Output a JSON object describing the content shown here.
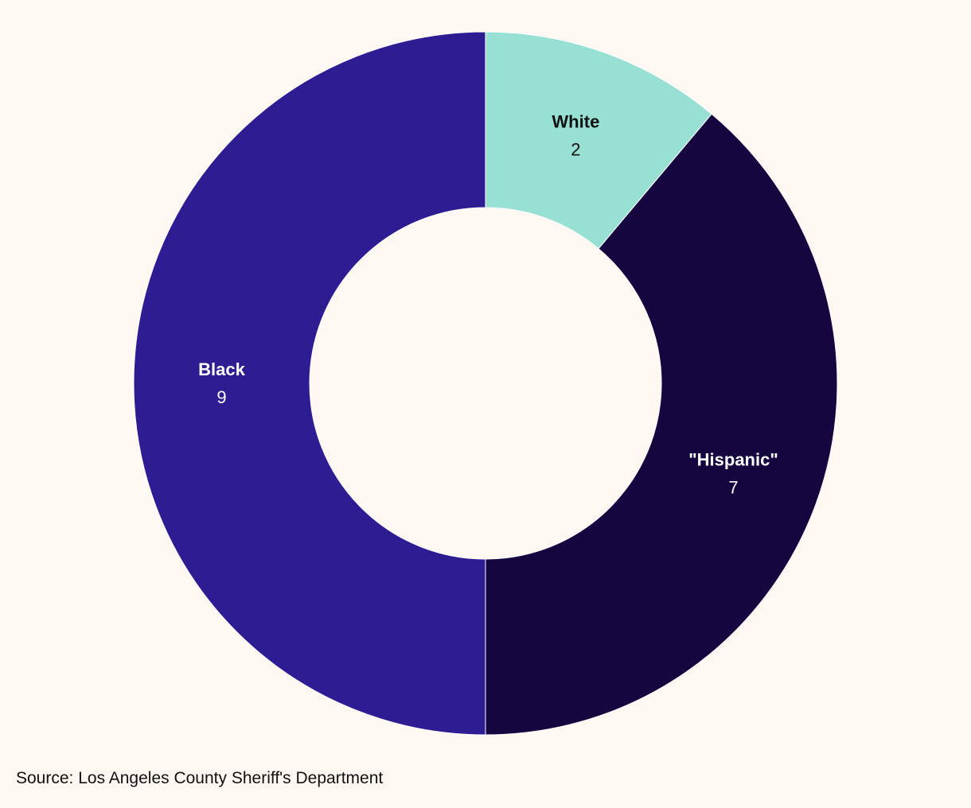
{
  "chart_data": {
    "type": "pie",
    "donut": true,
    "categories": [
      "White",
      "\"Hispanic\"",
      "Black"
    ],
    "values": [
      2,
      7,
      9
    ],
    "colors": [
      "#98e0d3",
      "#150640",
      "#2e1c93"
    ],
    "label_colors": [
      "#111111",
      "#ffffff",
      "#ffffff"
    ],
    "start_angle": "12 o'clock, clockwise"
  },
  "footer": {
    "source": "Source: Los Angeles County Sheriff's Department"
  }
}
